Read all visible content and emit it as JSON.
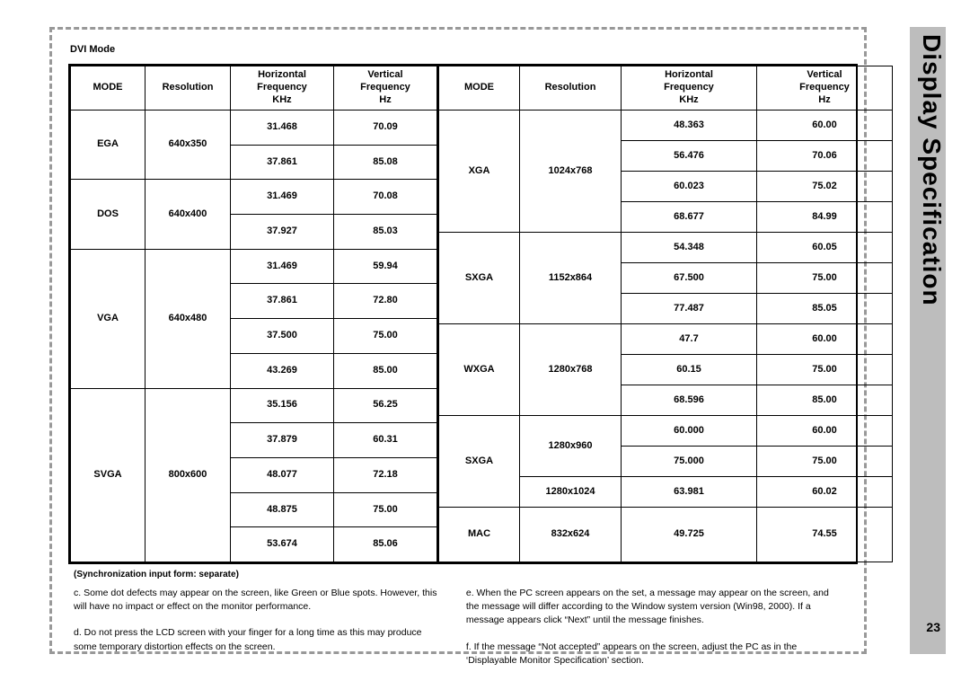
{
  "sidebar_title": "Display  Specification",
  "page_number": "23",
  "section_title": "DVI Mode",
  "columns_left": {
    "mode": "MODE",
    "resolution": "Resolution",
    "hfreq": "Horizontal\nFrequency\nKHz",
    "vfreq": "Vertical\nFrequency\nHz"
  },
  "columns_right": {
    "mode": "MODE",
    "resolution": "Resolution",
    "hfreq": "Horizontal\nFrequency\nKHz",
    "vfreq": "Vertical\nFrequency\nHz"
  },
  "left_table": [
    {
      "mode": "EGA",
      "resolution": "640x350",
      "rows": [
        [
          "31.468",
          "70.09"
        ],
        [
          "37.861",
          "85.08"
        ]
      ]
    },
    {
      "mode": "DOS",
      "resolution": "640x400",
      "rows": [
        [
          "31.469",
          "70.08"
        ],
        [
          "37.927",
          "85.03"
        ]
      ]
    },
    {
      "mode": "VGA",
      "resolution": "640x480",
      "rows": [
        [
          "31.469",
          "59.94"
        ],
        [
          "37.861",
          "72.80"
        ],
        [
          "37.500",
          "75.00"
        ],
        [
          "43.269",
          "85.00"
        ]
      ]
    },
    {
      "mode": "SVGA",
      "resolution": "800x600",
      "rows": [
        [
          "35.156",
          "56.25"
        ],
        [
          "37.879",
          "60.31"
        ],
        [
          "48.077",
          "72.18"
        ],
        [
          "48.875",
          "75.00"
        ],
        [
          "53.674",
          "85.06"
        ]
      ]
    }
  ],
  "right_table": [
    {
      "mode": "XGA",
      "resolution": "1024x768",
      "rows": [
        [
          "48.363",
          "60.00"
        ],
        [
          "56.476",
          "70.06"
        ],
        [
          "60.023",
          "75.02"
        ],
        [
          "68.677",
          "84.99"
        ]
      ]
    },
    {
      "mode": "SXGA",
      "resolution": "1152x864",
      "rows": [
        [
          "54.348",
          "60.05"
        ],
        [
          "67.500",
          "75.00"
        ],
        [
          "77.487",
          "85.05"
        ]
      ]
    },
    {
      "mode": "WXGA",
      "resolution": "1280x768",
      "rows": [
        [
          "47.7",
          "60.00"
        ],
        [
          "60.15",
          "75.00"
        ],
        [
          "68.596",
          "85.00"
        ]
      ]
    },
    {
      "mode": "SXGA",
      "resolution": "1280x960",
      "rows": [
        [
          "60.000",
          "60.00"
        ],
        [
          "75.000",
          "75.00"
        ]
      ]
    },
    {
      "mode": "",
      "resolution": "1280x1024",
      "rows": [
        [
          "63.981",
          "60.02"
        ]
      ]
    },
    {
      "mode": "MAC",
      "resolution": "832x624",
      "rows": [
        [
          "49.725",
          "74.55"
        ]
      ]
    }
  ],
  "sync_note": "(Synchronization input form: separate)",
  "notes_left": [
    "c. Some dot defects may appear on the screen, like Green or Blue spots. However, this will have no impact or effect on the monitor performance.",
    "d. Do not press the LCD screen with your finger for a long time as this may produce some temporary distortion effects on the screen."
  ],
  "notes_right": [
    "e. When the PC screen appears on the set, a message may appear on the screen, and the message will  differ according to the Window system version (Win98, 2000). If a message appears click “Next” until the message finishes.",
    "f. If the message “Not accepted” appears on the screen, adjust the PC as in the ‘Displayable Monitor Specification’ section."
  ],
  "styling": {
    "border_dash_color": "#999999",
    "sidebar_bg": "#bdbdbd",
    "text_color": "#000000",
    "font_family": "Arial",
    "header_fontsize_pt": 11,
    "cell_fontsize_pt": 11,
    "sidebar_title_fontsize_pt": 28,
    "table_border_color": "#000000"
  }
}
